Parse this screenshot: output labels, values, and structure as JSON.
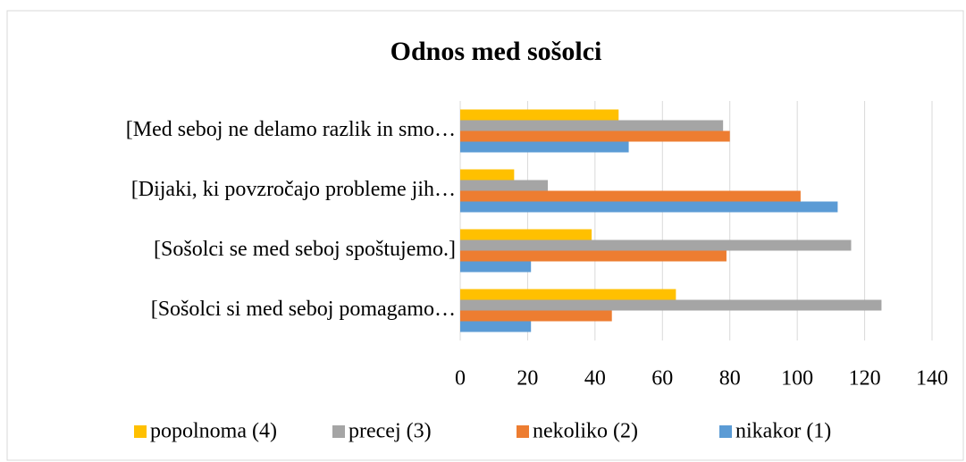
{
  "chart_data": {
    "type": "barh",
    "title": "Odnos med sošolci",
    "categories": [
      "[Med seboj ne delamo razlik in smo…",
      "[Dijaki, ki povzročajo probleme jih…",
      "[Sošolci se med seboj spoštujemo.]",
      "[Sošolci si med seboj pomagamo…"
    ],
    "series": [
      {
        "name": "popolnoma (4)",
        "color": "#ffc000",
        "values": [
          47,
          16,
          39,
          64
        ]
      },
      {
        "name": "precej (3)",
        "color": "#a5a5a5",
        "values": [
          78,
          26,
          116,
          125
        ]
      },
      {
        "name": "nekoliko (2)",
        "color": "#ed7d31",
        "values": [
          80,
          101,
          79,
          45
        ]
      },
      {
        "name": "nikakor (1)",
        "color": "#5b9bd5",
        "values": [
          50,
          112,
          21,
          21
        ]
      }
    ],
    "xlim": [
      0,
      140
    ],
    "xticks": [
      0,
      20,
      40,
      60,
      80,
      100,
      120,
      140
    ],
    "grid": true,
    "legend": "bottom"
  }
}
